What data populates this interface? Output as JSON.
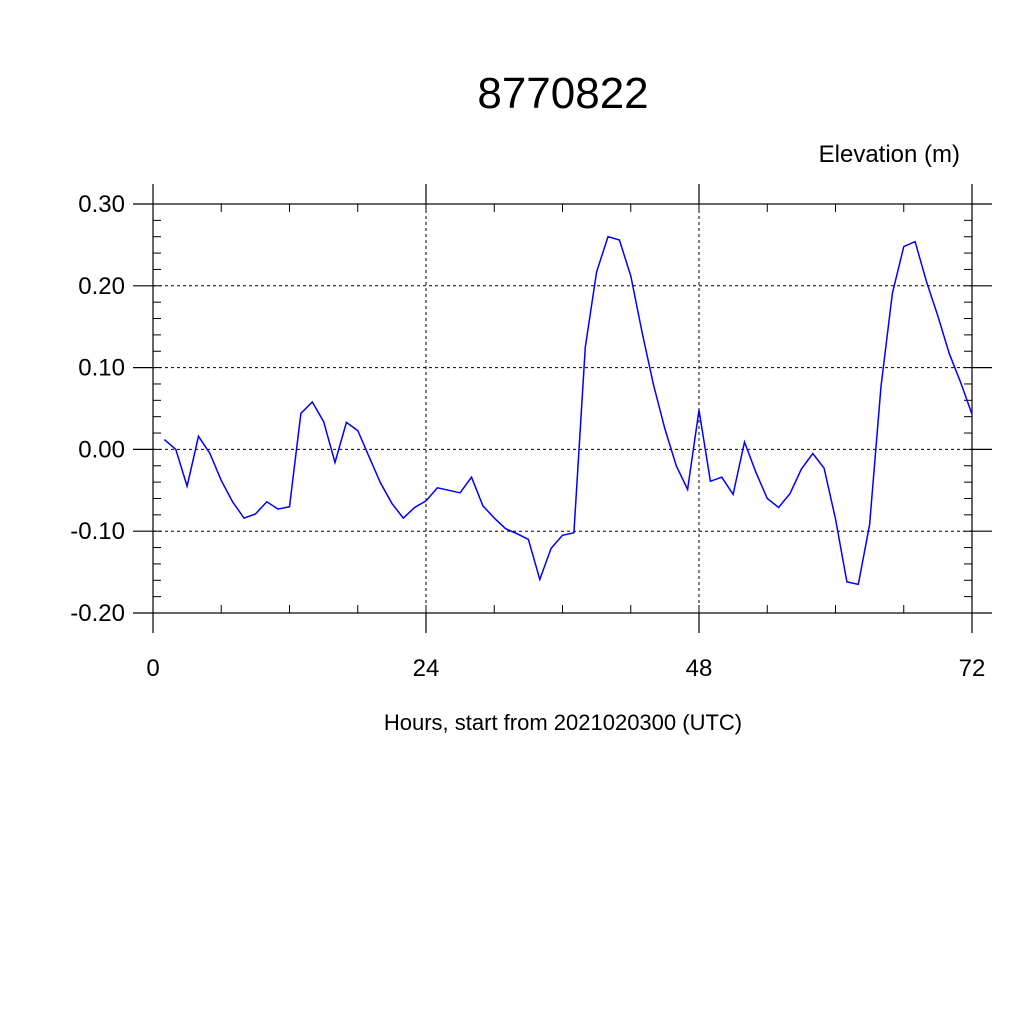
{
  "chart_data": {
    "type": "line",
    "title": "8770822",
    "ylabel": "Elevation (m)",
    "xlabel": "Hours, start from 2021020300 (UTC)",
    "xlim": [
      0,
      72
    ],
    "ylim": [
      -0.2,
      0.3
    ],
    "x_ticks": [
      0,
      24,
      48,
      72
    ],
    "x_tick_labels": [
      "0",
      "24",
      "48",
      "72"
    ],
    "y_ticks": [
      -0.2,
      -0.1,
      0.0,
      0.1,
      0.2,
      0.3
    ],
    "y_tick_labels": [
      "-0.20",
      "-0.10",
      "0.00",
      "0.10",
      "0.20",
      "0.30"
    ],
    "grid": true,
    "series": [
      {
        "color": "#0000ff",
        "x": [
          1,
          2,
          3,
          4,
          5,
          6,
          7,
          8,
          9,
          10,
          11,
          12,
          13,
          14,
          15,
          16,
          17,
          18,
          19,
          20,
          21,
          22,
          23,
          24,
          25,
          26,
          27,
          28,
          29,
          30,
          31,
          32,
          33,
          34,
          35,
          36,
          37,
          38,
          39,
          40,
          41,
          42,
          43,
          44,
          45,
          46,
          47,
          48,
          49,
          50,
          51,
          52,
          53,
          54,
          55,
          56,
          57,
          58,
          59,
          60,
          61,
          62,
          63,
          64,
          65,
          66,
          67,
          68,
          69,
          70,
          71,
          72
        ],
        "values": [
          0.012,
          0.0,
          -0.045,
          0.016,
          -0.005,
          -0.038,
          -0.064,
          -0.084,
          -0.079,
          -0.064,
          -0.073,
          -0.07,
          0.044,
          0.058,
          0.034,
          -0.016,
          0.033,
          0.023,
          -0.009,
          -0.041,
          -0.066,
          -0.084,
          -0.071,
          -0.063,
          -0.047,
          -0.05,
          -0.053,
          -0.034,
          -0.069,
          -0.084,
          -0.097,
          -0.103,
          -0.11,
          -0.159,
          -0.121,
          -0.105,
          -0.102,
          0.125,
          0.217,
          0.26,
          0.256,
          0.212,
          0.143,
          0.079,
          0.025,
          -0.02,
          -0.049,
          0.048,
          -0.039,
          -0.034,
          -0.055,
          0.009,
          -0.028,
          -0.06,
          -0.071,
          -0.054,
          -0.024,
          -0.005,
          -0.023,
          -0.085,
          -0.162,
          -0.165,
          -0.092,
          0.077,
          0.191,
          0.248,
          0.254,
          0.205,
          0.163,
          0.117,
          0.082,
          0.043
        ]
      }
    ]
  }
}
